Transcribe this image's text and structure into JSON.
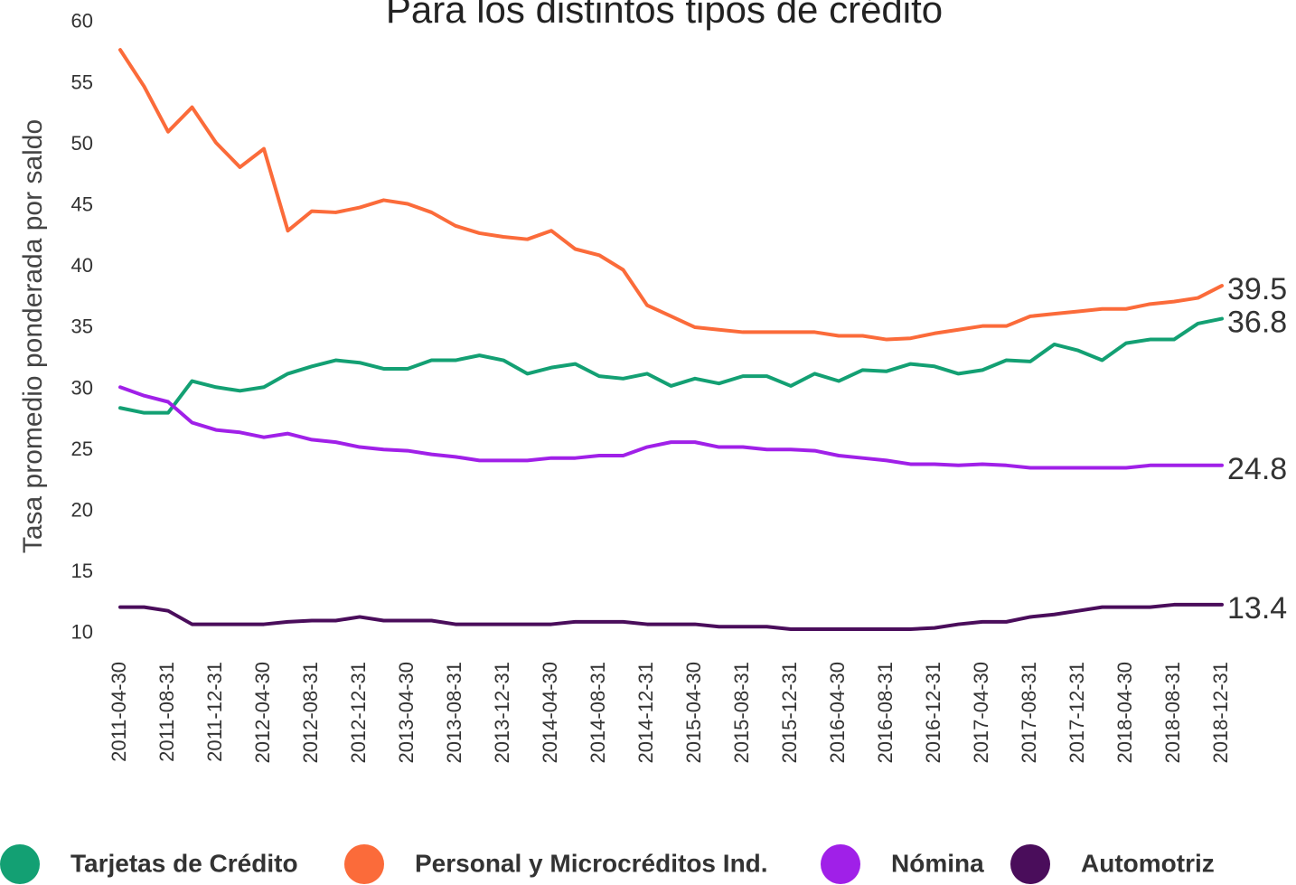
{
  "chart_data": {
    "type": "line",
    "title": "Para los distintos tipos de crédito",
    "y_label": "Tasa promedio ponderada por saldo",
    "categories": [
      "2011-04-30",
      null,
      "2011-08-31",
      null,
      "2011-12-31",
      null,
      "2012-04-30",
      null,
      "2012-08-31",
      null,
      "2012-12-31",
      null,
      "2013-04-30",
      null,
      "2013-08-31",
      null,
      "2013-12-31",
      null,
      "2014-04-30",
      null,
      "2014-08-31",
      null,
      "2014-12-31",
      null,
      "2015-04-30",
      null,
      "2015-08-31",
      null,
      "2015-12-31",
      null,
      "2016-04-30",
      null,
      "2016-08-31",
      null,
      "2016-12-31",
      null,
      "2017-04-30",
      null,
      "2017-08-31",
      null,
      "2017-12-31",
      null,
      "2018-04-30",
      null,
      "2018-08-31",
      null,
      "2018-12-31"
    ],
    "series": [
      {
        "name": "Tarjetas de Crédito",
        "color": "#13a073",
        "values": [
          29.5,
          29.1,
          29.1,
          31.7,
          31.2,
          30.9,
          31.2,
          32.3,
          32.9,
          33.4,
          33.2,
          32.7,
          32.7,
          33.4,
          33.4,
          33.8,
          33.4,
          32.3,
          32.8,
          33.1,
          32.1,
          31.9,
          32.3,
          31.3,
          31.9,
          31.5,
          32.1,
          32.1,
          31.3,
          32.3,
          31.7,
          32.6,
          32.5,
          33.1,
          32.9,
          32.3,
          32.6,
          33.4,
          33.3,
          34.7,
          34.2,
          33.4,
          34.8,
          35.1,
          35.1,
          36.4,
          36.8
        ]
      },
      {
        "name": "Personal y Microcréditos Ind.",
        "color": "#fb6b3a",
        "values": [
          58.8,
          55.8,
          52.1,
          54.1,
          51.2,
          49.2,
          50.7,
          44.0,
          45.6,
          45.5,
          45.9,
          46.5,
          46.2,
          45.5,
          44.4,
          43.8,
          43.5,
          43.3,
          44.0,
          42.5,
          42.0,
          40.8,
          37.9,
          37.0,
          36.1,
          35.9,
          35.7,
          35.7,
          35.7,
          35.7,
          35.4,
          35.4,
          35.1,
          35.2,
          35.6,
          35.9,
          36.2,
          36.2,
          37.0,
          37.2,
          37.4,
          37.6,
          37.6,
          38.0,
          38.2,
          38.5,
          39.5
        ]
      },
      {
        "name": "Nómina",
        "color": "#a020e8",
        "values": [
          31.2,
          30.5,
          30.0,
          28.3,
          27.7,
          27.5,
          27.1,
          27.4,
          26.9,
          26.7,
          26.3,
          26.1,
          26.0,
          25.7,
          25.5,
          25.2,
          25.2,
          25.2,
          25.4,
          25.4,
          25.6,
          25.6,
          26.3,
          26.7,
          26.7,
          26.3,
          26.3,
          26.1,
          26.1,
          26.0,
          25.6,
          25.4,
          25.2,
          24.9,
          24.9,
          24.8,
          24.9,
          24.8,
          24.6,
          24.6,
          24.6,
          24.6,
          24.6,
          24.8,
          24.8,
          24.8,
          24.8
        ]
      },
      {
        "name": "Automotriz",
        "color": "#4a0d5b",
        "values": [
          13.2,
          13.2,
          12.9,
          11.8,
          11.8,
          11.8,
          11.8,
          12.0,
          12.1,
          12.1,
          12.4,
          12.1,
          12.1,
          12.1,
          11.8,
          11.8,
          11.8,
          11.8,
          11.8,
          12.0,
          12.0,
          12.0,
          11.8,
          11.8,
          11.8,
          11.6,
          11.6,
          11.6,
          11.4,
          11.4,
          11.4,
          11.4,
          11.4,
          11.4,
          11.5,
          11.8,
          12.0,
          12.0,
          12.4,
          12.6,
          12.9,
          13.2,
          13.2,
          13.2,
          13.4,
          13.4,
          13.4
        ]
      }
    ],
    "ylim": [
      10,
      60
    ],
    "yticks": [
      10,
      15,
      20,
      25,
      30,
      35,
      40,
      45,
      50,
      55,
      60
    ],
    "grid": false
  }
}
